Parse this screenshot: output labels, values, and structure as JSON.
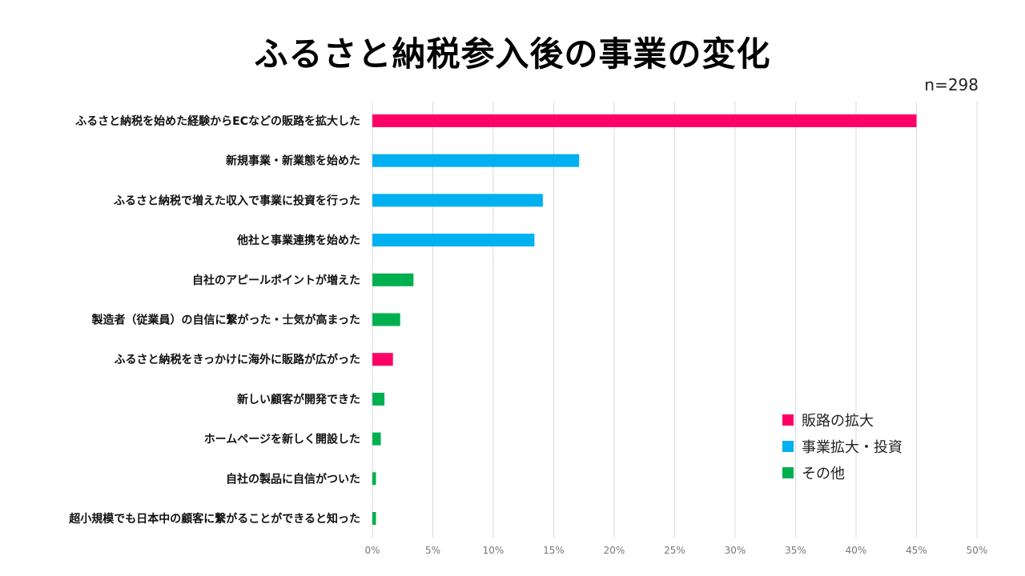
{
  "chart_data": {
    "type": "bar",
    "orientation": "horizontal",
    "title": "ふるさと納税参入後の事業の変化",
    "annotation": "n=298",
    "categories": [
      "ふるさと納税を始めた経験からECなどの販路を拡大した",
      "新規事業・新業態を始めた",
      "ふるさと納税で増えた収入で事業に投資を行った",
      "他社と事業連携を始めた",
      "自社のアピールポイントが増えた",
      "製造者（従業員）の自信に繋がった・士気が高まった",
      "ふるさと納税をきっかけに海外に販路が広がった",
      "新しい顧客が開発できた",
      "ホームページを新しく開設した",
      "自社の製品に自信がついた",
      "超小規模でも日本中の顧客に繋がることができると知った"
    ],
    "values": [
      45.0,
      17.1,
      14.1,
      13.4,
      3.4,
      2.3,
      1.7,
      1.0,
      0.7,
      0.3,
      0.3
    ],
    "groups": [
      "販路の拡大",
      "事業拡大・投資",
      "事業拡大・投資",
      "事業拡大・投資",
      "その他",
      "その他",
      "販路の拡大",
      "その他",
      "その他",
      "その他",
      "その他"
    ],
    "xlim": [
      0,
      50
    ],
    "xticks": [
      "0%",
      "5%",
      "10%",
      "15%",
      "20%",
      "25%",
      "30%",
      "35%",
      "40%",
      "45%",
      "50%"
    ],
    "grid": true,
    "legend": {
      "placement": "bottom-right",
      "entries": [
        {
          "label": "販路の拡大",
          "color": "#ff0066"
        },
        {
          "label": "事業拡大・投資",
          "color": "#00b0f0"
        },
        {
          "label": "その他",
          "color": "#00b050"
        }
      ]
    }
  }
}
